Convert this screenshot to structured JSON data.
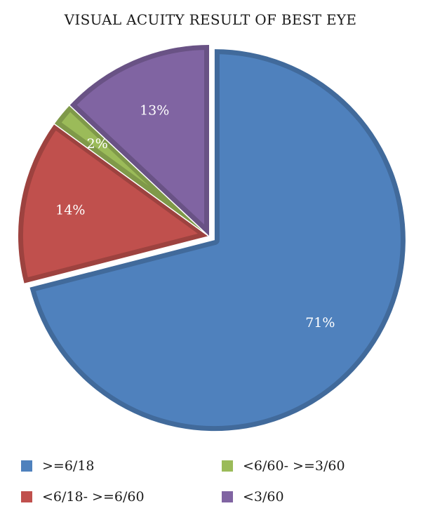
{
  "chart_data": {
    "type": "pie",
    "title": "VISUAL ACUITY RESULT OF BEST EYE",
    "categories": [
      ">=6/18",
      "<6/18- >=6/60",
      "<6/60- >=3/60",
      "<3/60"
    ],
    "values": [
      71,
      14,
      2,
      13
    ],
    "value_labels": [
      "71%",
      "14%",
      "2%",
      "13%"
    ],
    "colors": [
      "#4f81bd",
      "#c0504d",
      "#9bbb59",
      "#8064a2"
    ],
    "exploded": [
      true,
      false,
      false,
      false
    ],
    "legend": {
      "placement": "bottom",
      "columns": 2
    }
  }
}
